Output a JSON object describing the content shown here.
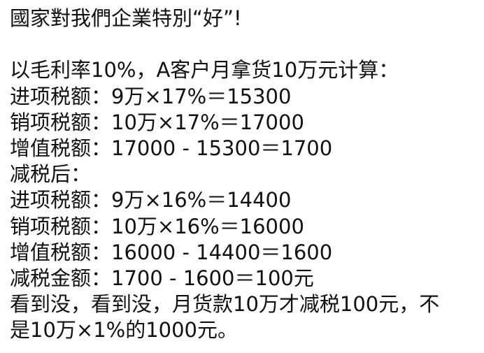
{
  "title": "國家對我們企業特別“好”!",
  "lines": [
    "",
    "以毛利率10%，A客户月拿货10万元计算：",
    "进项税额：9万×17%＝15300",
    "销项税额：10万×17%＝17000",
    "增值税额：17000 - 15300＝1700",
    "减税后：",
    "进项税额：9万×16%＝14400",
    "销项税额：10万×16%＝16000",
    "增值税额：16000 - 14400＝1600",
    "减税金额：1700 - 1600＝100元",
    "看到没，看到没，月货款10万才减税100元，不",
    "是10万×1%的1000元。"
  ]
}
